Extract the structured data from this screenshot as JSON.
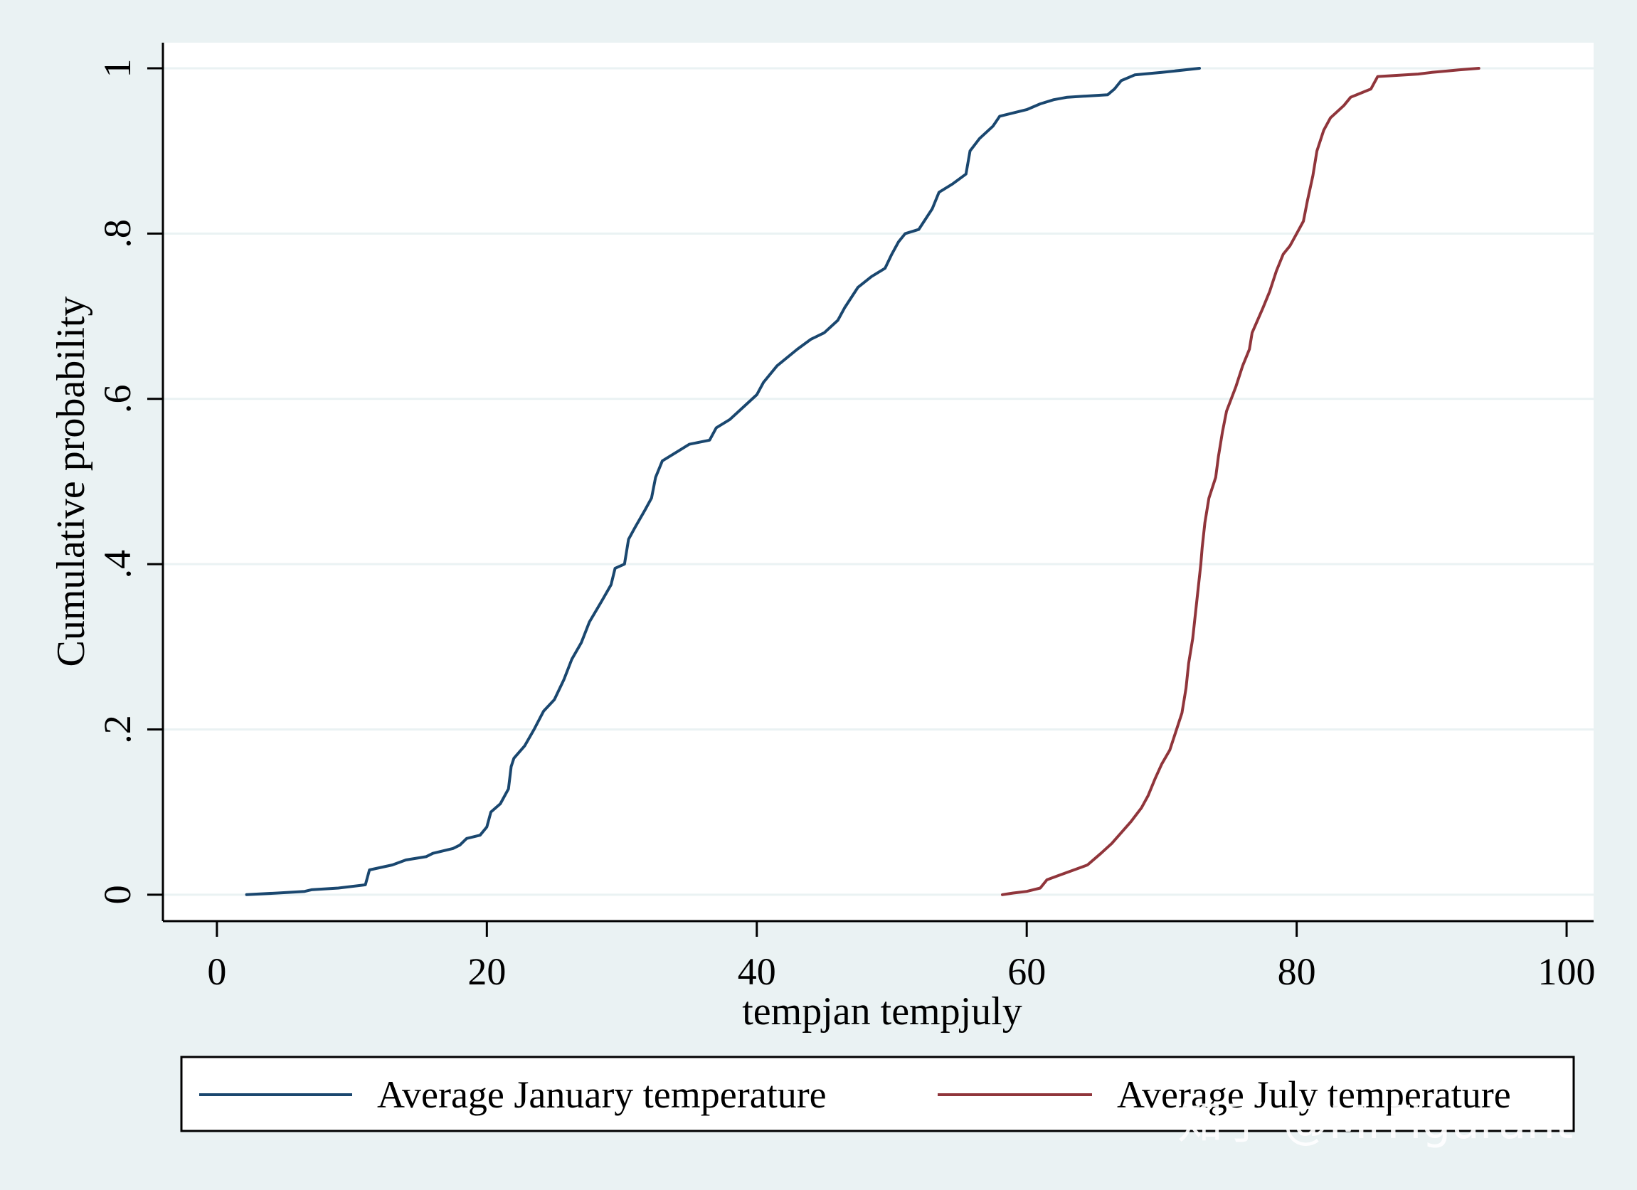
{
  "chart_data": {
    "type": "line",
    "xlabel": "tempjan tempjuly",
    "ylabel": "Cumulative probability",
    "xlim": [
      -4,
      102
    ],
    "ylim": [
      -0.032,
      1.031
    ],
    "xticks": [
      0,
      20,
      40,
      60,
      80,
      100
    ],
    "xtick_labels": [
      "0",
      "20",
      "40",
      "60",
      "80",
      "100"
    ],
    "yticks": [
      0,
      0.2,
      0.4,
      0.6,
      0.8,
      1
    ],
    "ytick_labels": [
      "0",
      ".2",
      ".4",
      ".6",
      ".8",
      "1"
    ],
    "grid": "horizontal",
    "legend_placement": "bottom",
    "series": [
      {
        "name": "Average January temperature",
        "color": "#1a476f",
        "points": [
          [
            2.2,
            0.0
          ],
          [
            4.5,
            0.002
          ],
          [
            6.5,
            0.004
          ],
          [
            7.0,
            0.006
          ],
          [
            9.0,
            0.008
          ],
          [
            11.0,
            0.012
          ],
          [
            11.3,
            0.03
          ],
          [
            13.0,
            0.036
          ],
          [
            14.0,
            0.042
          ],
          [
            15.5,
            0.046
          ],
          [
            16.0,
            0.05
          ],
          [
            17.5,
            0.056
          ],
          [
            18.0,
            0.06
          ],
          [
            18.5,
            0.068
          ],
          [
            19.5,
            0.072
          ],
          [
            20.0,
            0.082
          ],
          [
            20.3,
            0.1
          ],
          [
            21.0,
            0.11
          ],
          [
            21.6,
            0.128
          ],
          [
            21.8,
            0.155
          ],
          [
            22.0,
            0.165
          ],
          [
            22.8,
            0.18
          ],
          [
            23.5,
            0.2
          ],
          [
            24.2,
            0.222
          ],
          [
            25.0,
            0.236
          ],
          [
            25.7,
            0.26
          ],
          [
            26.3,
            0.285
          ],
          [
            27.0,
            0.305
          ],
          [
            27.6,
            0.33
          ],
          [
            28.5,
            0.355
          ],
          [
            29.2,
            0.375
          ],
          [
            29.5,
            0.395
          ],
          [
            30.2,
            0.4
          ],
          [
            30.5,
            0.43
          ],
          [
            31.0,
            0.445
          ],
          [
            31.7,
            0.465
          ],
          [
            32.2,
            0.48
          ],
          [
            32.5,
            0.505
          ],
          [
            33.0,
            0.525
          ],
          [
            34.0,
            0.535
          ],
          [
            35.0,
            0.545
          ],
          [
            36.5,
            0.55
          ],
          [
            37.0,
            0.565
          ],
          [
            38.0,
            0.575
          ],
          [
            39.0,
            0.59
          ],
          [
            40.0,
            0.605
          ],
          [
            40.5,
            0.62
          ],
          [
            41.5,
            0.64
          ],
          [
            43.0,
            0.66
          ],
          [
            44.0,
            0.672
          ],
          [
            45.0,
            0.68
          ],
          [
            46.0,
            0.695
          ],
          [
            46.5,
            0.71
          ],
          [
            47.5,
            0.735
          ],
          [
            48.5,
            0.748
          ],
          [
            49.5,
            0.758
          ],
          [
            50.0,
            0.775
          ],
          [
            50.5,
            0.79
          ],
          [
            51.0,
            0.8
          ],
          [
            52.0,
            0.805
          ],
          [
            53.0,
            0.83
          ],
          [
            53.5,
            0.85
          ],
          [
            54.5,
            0.86
          ],
          [
            55.5,
            0.872
          ],
          [
            55.8,
            0.9
          ],
          [
            56.5,
            0.915
          ],
          [
            57.5,
            0.93
          ],
          [
            58.0,
            0.942
          ],
          [
            60.0,
            0.95
          ],
          [
            61.0,
            0.957
          ],
          [
            62.0,
            0.962
          ],
          [
            63.0,
            0.965
          ],
          [
            66.0,
            0.968
          ],
          [
            66.5,
            0.975
          ],
          [
            67.0,
            0.985
          ],
          [
            68.0,
            0.992
          ],
          [
            70.0,
            0.995
          ],
          [
            72.8,
            1.0
          ]
        ]
      },
      {
        "name": "Average July temperature",
        "color": "#90353b",
        "points": [
          [
            58.2,
            0.0
          ],
          [
            59.0,
            0.002
          ],
          [
            60.0,
            0.004
          ],
          [
            61.0,
            0.008
          ],
          [
            61.5,
            0.018
          ],
          [
            62.5,
            0.024
          ],
          [
            63.5,
            0.03
          ],
          [
            64.5,
            0.036
          ],
          [
            65.5,
            0.05
          ],
          [
            66.3,
            0.062
          ],
          [
            67.0,
            0.075
          ],
          [
            67.7,
            0.088
          ],
          [
            68.5,
            0.105
          ],
          [
            69.0,
            0.12
          ],
          [
            69.5,
            0.14
          ],
          [
            70.0,
            0.158
          ],
          [
            70.6,
            0.175
          ],
          [
            71.1,
            0.2
          ],
          [
            71.5,
            0.22
          ],
          [
            71.8,
            0.25
          ],
          [
            72.0,
            0.28
          ],
          [
            72.3,
            0.31
          ],
          [
            72.5,
            0.34
          ],
          [
            72.7,
            0.37
          ],
          [
            72.9,
            0.4
          ],
          [
            73.0,
            0.42
          ],
          [
            73.2,
            0.45
          ],
          [
            73.5,
            0.48
          ],
          [
            74.0,
            0.505
          ],
          [
            74.2,
            0.53
          ],
          [
            74.5,
            0.56
          ],
          [
            74.8,
            0.585
          ],
          [
            75.5,
            0.615
          ],
          [
            76.0,
            0.64
          ],
          [
            76.5,
            0.66
          ],
          [
            76.7,
            0.68
          ],
          [
            77.5,
            0.71
          ],
          [
            78.0,
            0.73
          ],
          [
            78.5,
            0.755
          ],
          [
            79.0,
            0.775
          ],
          [
            79.5,
            0.785
          ],
          [
            80.0,
            0.8
          ],
          [
            80.5,
            0.815
          ],
          [
            80.8,
            0.84
          ],
          [
            81.2,
            0.87
          ],
          [
            81.5,
            0.9
          ],
          [
            82.0,
            0.925
          ],
          [
            82.5,
            0.94
          ],
          [
            83.5,
            0.955
          ],
          [
            84.0,
            0.965
          ],
          [
            85.5,
            0.975
          ],
          [
            86.0,
            0.99
          ],
          [
            89.0,
            0.993
          ],
          [
            90.0,
            0.995
          ],
          [
            92.0,
            0.998
          ],
          [
            93.5,
            1.0
          ]
        ]
      }
    ]
  },
  "watermark": {
    "text": "知乎 @MrFigurant"
  }
}
